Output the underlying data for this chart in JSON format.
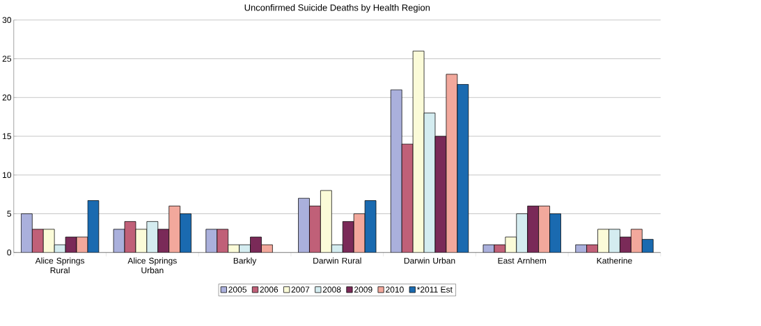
{
  "chart_data": {
    "type": "bar",
    "title": "Unconfirmed Suicide Deaths by Health Region",
    "categories": [
      "Alice Springs Rural",
      "Alice Springs Urban",
      "Barkly",
      "Darwin Rural",
      "Darwin Urban",
      "East Arnhem",
      "Katherine"
    ],
    "series": [
      {
        "name": "2005",
        "color": "#aab0dc",
        "values": [
          5,
          3,
          3,
          7,
          21,
          1,
          1
        ]
      },
      {
        "name": "2006",
        "color": "#c06078",
        "values": [
          3,
          4,
          3,
          6,
          14,
          1,
          1
        ]
      },
      {
        "name": "2007",
        "color": "#fbfbd8",
        "values": [
          3,
          3,
          1,
          8,
          26,
          2,
          3
        ]
      },
      {
        "name": "2008",
        "color": "#d4ecf0",
        "values": [
          1,
          4,
          1,
          1,
          18,
          5,
          3
        ]
      },
      {
        "name": "2009",
        "color": "#7a2a58",
        "values": [
          2,
          3,
          2,
          4,
          15,
          6,
          2
        ]
      },
      {
        "name": "2010",
        "color": "#f2a89c",
        "values": [
          2,
          6,
          1,
          5,
          23,
          6,
          3
        ]
      },
      {
        "name": "*2011 Est",
        "color": "#1a6ab0",
        "values": [
          6.7,
          5,
          null,
          6.7,
          21.7,
          5,
          1.7
        ]
      }
    ],
    "ylim": [
      0,
      30
    ],
    "yticks": [
      0,
      5,
      10,
      15,
      20,
      25,
      30
    ],
    "grid": "y",
    "legend": "bottom"
  }
}
